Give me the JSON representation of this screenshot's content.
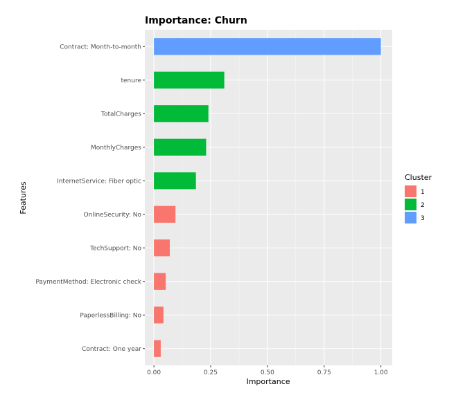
{
  "chart_data": {
    "type": "bar",
    "orientation": "horizontal",
    "title": "Importance: Churn",
    "xlabel": "Importance",
    "ylabel": "Features",
    "xlim": [
      -0.04,
      1.05
    ],
    "x_ticks": [
      0.0,
      0.25,
      0.5,
      0.75,
      1.0
    ],
    "x_tick_labels": [
      "0.00",
      "0.25",
      "0.50",
      "0.75",
      "1.00"
    ],
    "grid": true,
    "legend": {
      "title": "Cluster",
      "position": "right",
      "entries": [
        {
          "label": "1",
          "color": "#F8766D"
        },
        {
          "label": "2",
          "color": "#00BA38"
        },
        {
          "label": "3",
          "color": "#619CFF"
        }
      ]
    },
    "categories": [
      "Contract: Month-to-month",
      "tenure",
      "TotalCharges",
      "MonthlyCharges",
      "InternetService: Fiber optic",
      "OnlineSecurity: No",
      "TechSupport: No",
      "PaymentMethod: Electronic check",
      "PaperlessBilling: No",
      "Contract: One year"
    ],
    "values": [
      1.0,
      0.31,
      0.24,
      0.23,
      0.185,
      0.095,
      0.07,
      0.052,
      0.042,
      0.03
    ],
    "clusters": [
      "3",
      "2",
      "2",
      "2",
      "2",
      "1",
      "1",
      "1",
      "1",
      "1"
    ]
  }
}
